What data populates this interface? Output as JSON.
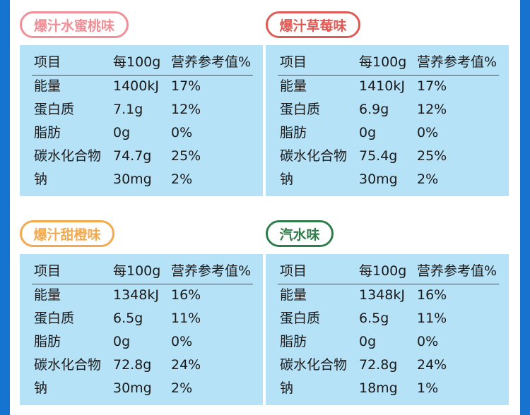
{
  "headers": [
    "项目",
    "每100g",
    "营养参考值%"
  ],
  "row_labels": [
    "能量",
    "蛋白质",
    "脂肪",
    "碳水化合物",
    "钠"
  ],
  "flavors": [
    {
      "name": "爆汁水蜜桃味",
      "color": "#f08f97",
      "values": [
        [
          "1400kJ",
          "17%"
        ],
        [
          "7.1g",
          "12%"
        ],
        [
          "0g",
          "0%"
        ],
        [
          "74.7g",
          "25%"
        ],
        [
          "30mg",
          "2%"
        ]
      ]
    },
    {
      "name": "爆汁草莓味",
      "color": "#e05a55",
      "values": [
        [
          "1410kJ",
          "17%"
        ],
        [
          "6.9g",
          "12%"
        ],
        [
          "0g",
          "0%"
        ],
        [
          "75.4g",
          "25%"
        ],
        [
          "30mg",
          "2%"
        ]
      ]
    },
    {
      "name": "爆汁甜橙味",
      "color": "#f4a94c",
      "values": [
        [
          "1348kJ",
          "16%"
        ],
        [
          "6.5g",
          "11%"
        ],
        [
          "0g",
          "0%"
        ],
        [
          "72.8g",
          "24%"
        ],
        [
          "30mg",
          "2%"
        ]
      ]
    },
    {
      "name": "汽水味",
      "color": "#2f7d4a",
      "values": [
        [
          "1348kJ",
          "16%"
        ],
        [
          "6.5g",
          "11%"
        ],
        [
          "0g",
          "0%"
        ],
        [
          "72.8g",
          "24%"
        ],
        [
          "18mg",
          "1%"
        ]
      ]
    }
  ]
}
